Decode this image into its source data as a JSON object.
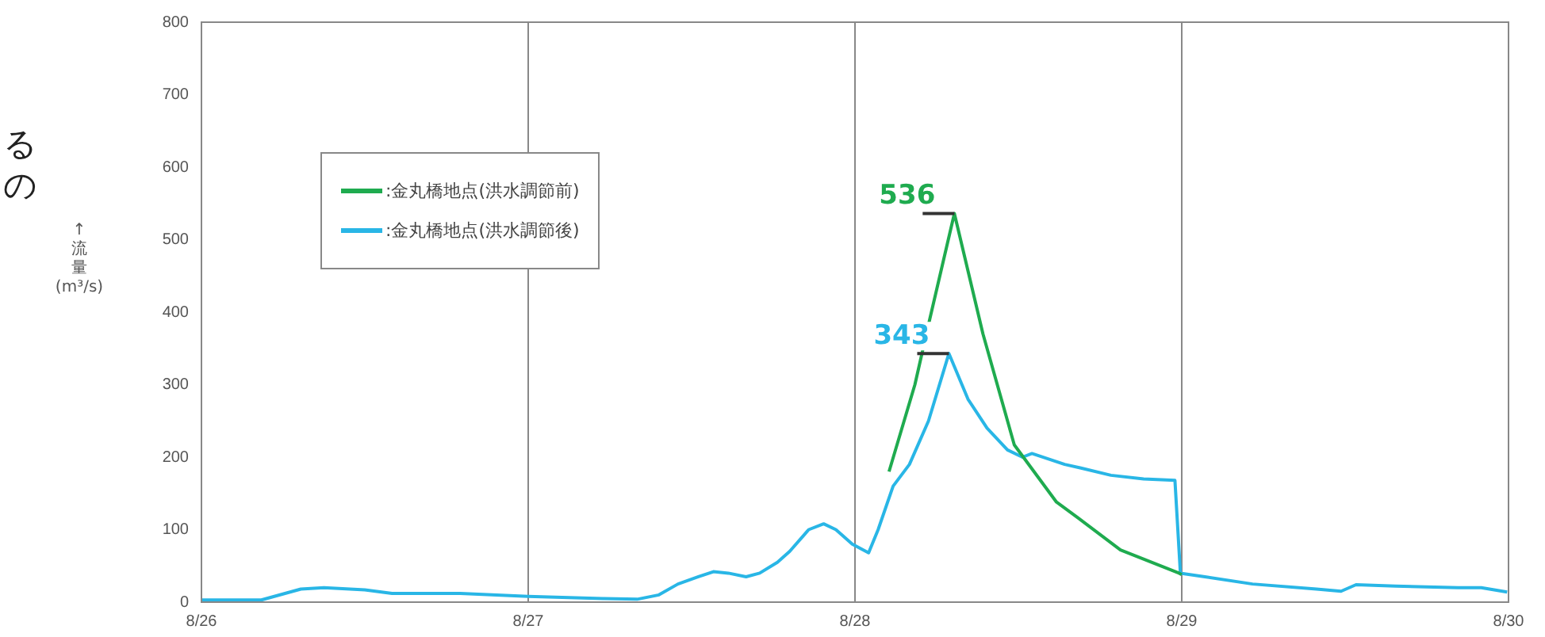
{
  "chart_data": {
    "type": "line",
    "ylabel": "↑流量(m³/s)",
    "xlim": [
      "--08-26",
      "--08-30"
    ],
    "xticks": [
      {
        "value": "--08-26",
        "label": "8/26"
      },
      {
        "value": "--08-27",
        "label": "8/27"
      },
      {
        "value": "--08-28",
        "label": "8/28"
      },
      {
        "value": "--08-29",
        "label": "8/29"
      },
      {
        "value": "--08-30",
        "label": "8/30"
      }
    ],
    "ylim": [
      0,
      800
    ],
    "yticks": [
      0,
      100,
      200,
      300,
      400,
      500,
      600,
      700,
      800
    ],
    "grid": "x",
    "legend": "top left",
    "marker": "none",
    "line_style": "solid",
    "series": [
      {
        "name": ":金丸橋地点(洪水調節前)",
        "color": "#1fab4f",
        "x": [
          "--08-28T02:30",
          "--08-28T04:24",
          "--08-28T05:30",
          "--08-28T07:18",
          "--08-28T09:24",
          "--08-28T11:42",
          "--08-28T14:48",
          "--08-28T16:24",
          "--08-28T19:30",
          "--08-28T23:48",
          "--08-29T00:00"
        ],
        "values": [
          180,
          300,
          391,
          536,
          370,
          217,
          138,
          116,
          72,
          40,
          38
        ]
      },
      {
        "name": ":金丸橋地点(洪水調節後)",
        "color": "#29b6e6",
        "x": [
          "--08-26T00:00",
          "--08-26T04:24",
          "--08-26T07:18",
          "--08-26T09:00",
          "--08-26T12:00",
          "--08-26T14:00",
          "--08-26T19:00",
          "--08-27T00:00",
          "--08-27T05:30",
          "--08-27T08:00",
          "--08-27T09:36",
          "--08-27T11:00",
          "--08-27T12:30",
          "--08-27T13:36",
          "--08-27T14:42",
          "--08-27T16:00",
          "--08-27T17:00",
          "--08-27T18:18",
          "--08-27T19:12",
          "--08-27T20:36",
          "--08-27T21:42",
          "--08-27T22:36",
          "--08-27T23:48",
          "--08-28T01:00",
          "--08-28T01:42",
          "--08-28T02:48",
          "--08-28T04:00",
          "--08-28T05:24",
          "--08-28T06:54",
          "--08-28T08:18",
          "--08-28T09:42",
          "--08-28T11:12",
          "--08-28T12:18",
          "--08-28T13:00",
          "--08-28T15:24",
          "--08-28T16:36",
          "--08-28T18:48",
          "--08-28T21:12",
          "--08-28T23:30",
          "--08-28T23:54",
          "--08-29T01:42",
          "--08-29T05:12",
          "--08-29T09:54",
          "--08-29T11:42",
          "--08-29T12:48",
          "--08-29T15:42",
          "--08-29T20:18",
          "--08-29T22:00",
          "--08-29T23:54"
        ],
        "values": [
          3,
          3,
          18,
          20,
          17,
          12,
          12,
          8,
          5,
          4,
          10,
          25,
          35,
          42,
          40,
          35,
          40,
          55,
          70,
          100,
          108,
          100,
          80,
          68,
          100,
          160,
          190,
          250,
          343,
          280,
          240,
          210,
          200,
          205,
          190,
          185,
          175,
          170,
          168,
          40,
          35,
          25,
          18,
          15,
          24,
          22,
          20,
          20,
          14
        ]
      }
    ],
    "annotations": [
      {
        "text": "536",
        "x": "--08-28T07:18",
        "y": 536
      },
      {
        "text": "343",
        "x": "--08-28T06:54",
        "y": 343
      },
      "る",
      "の"
    ]
  }
}
